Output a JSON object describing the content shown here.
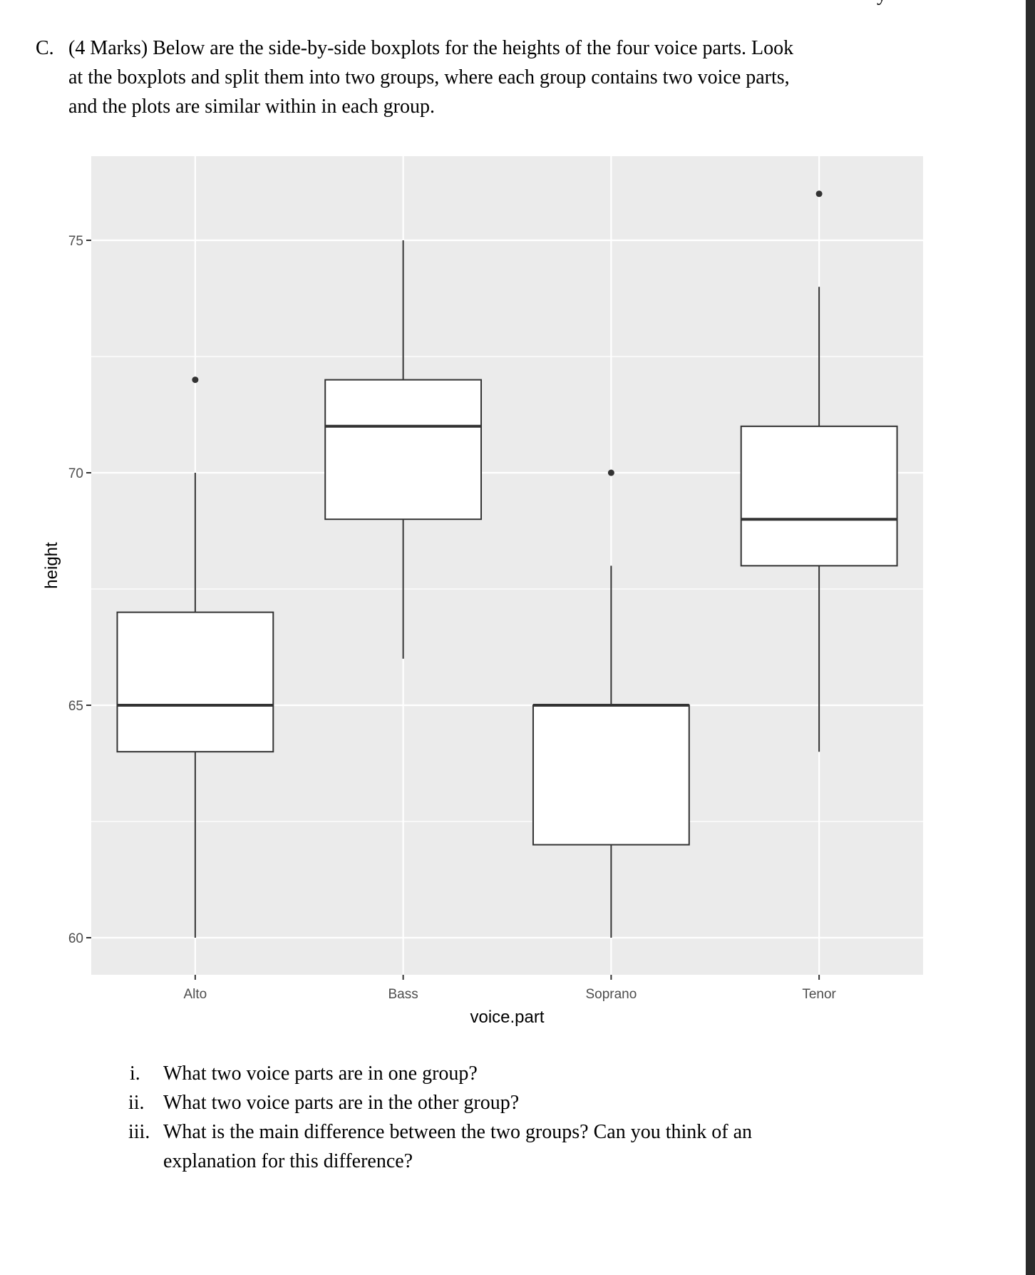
{
  "page": {
    "clipped_glyph": "y",
    "question": {
      "label": "C.",
      "lines": [
        "(4 Marks) Below are the side-by-side boxplots for the heights of the four voice parts. Look",
        "at the boxplots and split them into two groups, where each group contains two voice parts,",
        "and the plots are similar within in each group."
      ]
    },
    "subquestions": [
      {
        "num": "i.",
        "lines": [
          "What two voice parts are in one group?"
        ]
      },
      {
        "num": "ii.",
        "lines": [
          "What two voice parts are in the other group?"
        ]
      },
      {
        "num": "iii.",
        "lines": [
          "What is the main difference between the two groups? Can you think of an",
          "explanation for this difference?"
        ]
      }
    ]
  },
  "colors": {
    "panel_bg": "#ebebeb",
    "grid": "#ffffff",
    "box_fill": "#ffffff",
    "box_line": "#333333",
    "tick_label": "#4d4d4d",
    "axis_title": "#000000",
    "scrollbar": "#2b2b2b"
  },
  "chart_data": {
    "type": "boxplot",
    "title": "",
    "xlabel": "voice.part",
    "ylabel": "height",
    "categories": [
      "Alto",
      "Bass",
      "Soprano",
      "Tenor"
    ],
    "y_ticks": [
      60,
      65,
      70,
      75
    ],
    "ylim": [
      59.2,
      76.8
    ],
    "grid": true,
    "legend": null,
    "boxes": [
      {
        "category": "Alto",
        "whisker_low": 60,
        "q1": 64,
        "median": 65,
        "q3": 67,
        "whisker_high": 70,
        "outliers": [
          72
        ]
      },
      {
        "category": "Bass",
        "whisker_low": 66,
        "q1": 69,
        "median": 71,
        "q3": 72,
        "whisker_high": 75,
        "outliers": []
      },
      {
        "category": "Soprano",
        "whisker_low": 60,
        "q1": 62,
        "median": 65,
        "q3": 65,
        "whisker_high": 68,
        "outliers": [
          70
        ]
      },
      {
        "category": "Tenor",
        "whisker_low": 64,
        "q1": 68,
        "median": 69,
        "q3": 71,
        "whisker_high": 74,
        "outliers": [
          76
        ]
      }
    ]
  }
}
